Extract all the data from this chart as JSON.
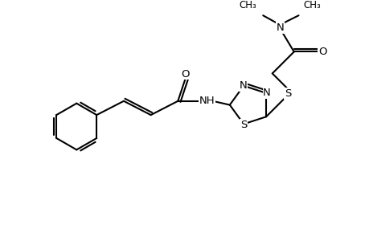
{
  "background": "#ffffff",
  "line_color": "#000000",
  "line_width": 1.5,
  "font_size": 9.5,
  "figsize": [
    4.6,
    3.0
  ],
  "dpi": 100,
  "xlim": [
    0,
    460
  ],
  "ylim": [
    0,
    300
  ]
}
